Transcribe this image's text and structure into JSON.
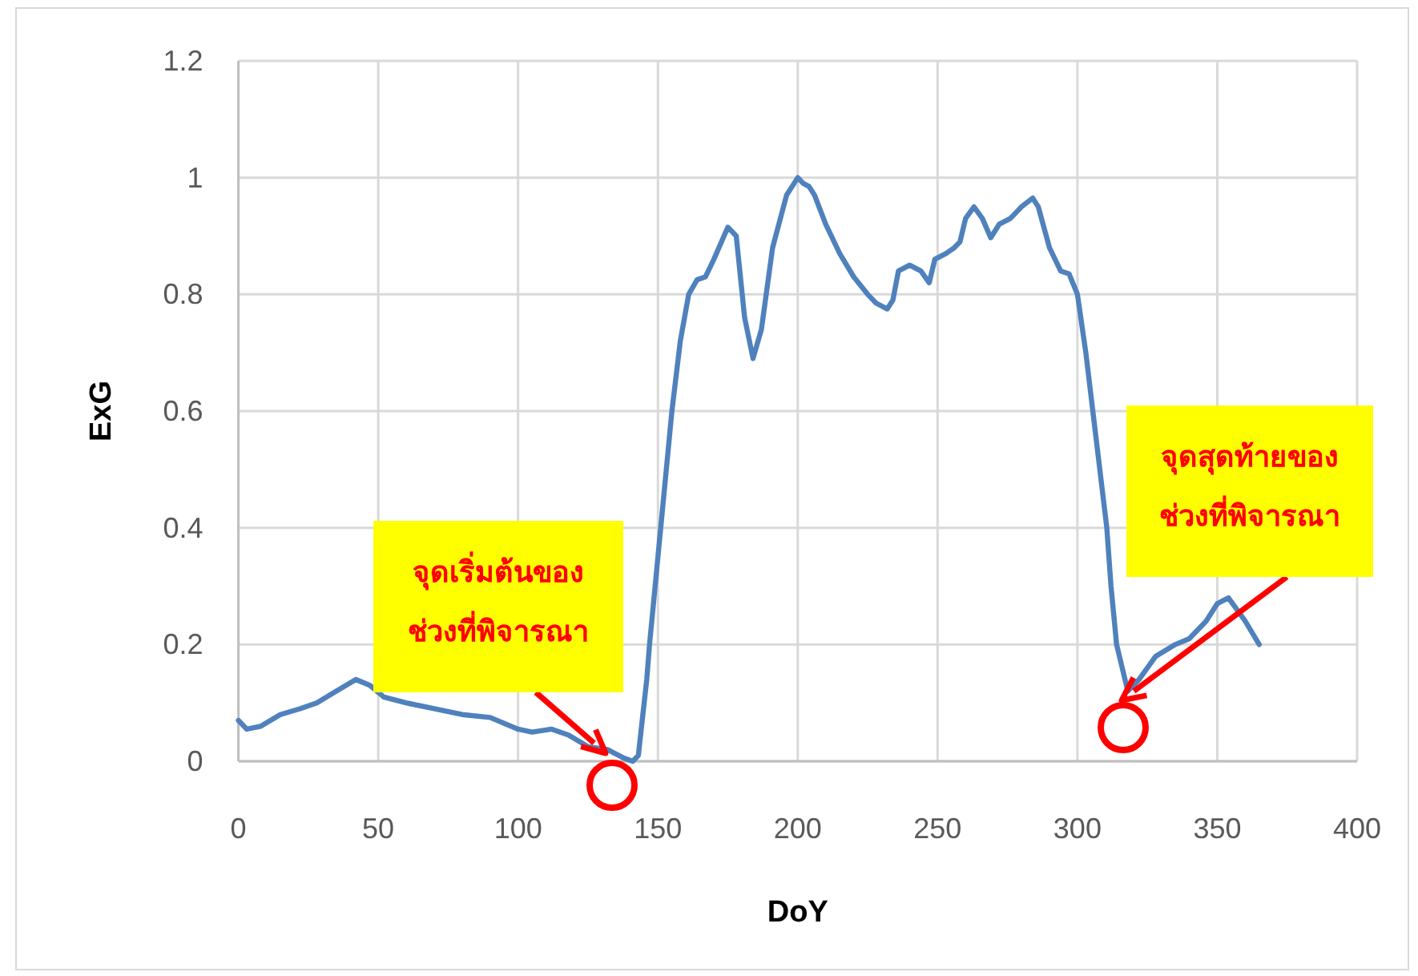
{
  "chart_data": {
    "type": "line",
    "xlabel": "DoY",
    "ylabel": "ExG",
    "xlim": [
      0,
      400
    ],
    "ylim": [
      0,
      1.2
    ],
    "xticks": [
      0,
      50,
      100,
      150,
      200,
      250,
      300,
      350,
      400
    ],
    "yticks": [
      0,
      0.2,
      0.4,
      0.6,
      0.8,
      1,
      1.2
    ],
    "grid": true,
    "marker": "none",
    "line_style": "solid",
    "series": [
      {
        "color": "#4f81bd",
        "x": [
          0,
          3,
          8,
          15,
          22,
          28,
          35,
          42,
          47,
          52,
          60,
          70,
          80,
          90,
          100,
          105,
          112,
          118,
          125,
          132,
          138,
          141,
          143,
          146,
          147,
          149,
          151,
          155,
          158,
          161,
          164,
          167,
          170,
          175,
          178,
          181,
          184,
          187,
          191,
          196,
          198,
          200,
          202,
          204,
          206,
          210,
          215,
          220,
          225,
          228,
          232,
          234,
          236,
          240,
          244,
          247,
          249,
          253,
          256,
          258,
          260,
          263,
          266,
          269,
          272,
          276,
          280,
          284,
          286,
          290,
          294,
          297,
          300,
          303,
          305.5,
          308,
          310.5,
          312,
          314,
          318,
          322,
          328,
          335,
          340,
          346,
          350,
          354,
          360,
          365
        ],
        "values": [
          0.07,
          0.055,
          0.06,
          0.08,
          0.09,
          0.1,
          0.12,
          0.14,
          0.13,
          0.11,
          0.1,
          0.09,
          0.08,
          0.075,
          0.055,
          0.05,
          0.055,
          0.045,
          0.025,
          0.02,
          0.005,
          0,
          0.01,
          0.14,
          0.2,
          0.3,
          0.4,
          0.6,
          0.72,
          0.8,
          0.825,
          0.83,
          0.86,
          0.915,
          0.9,
          0.76,
          0.69,
          0.74,
          0.88,
          0.97,
          0.985,
          1,
          0.99,
          0.985,
          0.97,
          0.92,
          0.87,
          0.83,
          0.8,
          0.785,
          0.775,
          0.79,
          0.84,
          0.85,
          0.84,
          0.82,
          0.86,
          0.87,
          0.88,
          0.89,
          0.93,
          0.95,
          0.93,
          0.897,
          0.92,
          0.93,
          0.95,
          0.965,
          0.95,
          0.88,
          0.84,
          0.835,
          0.8,
          0.7,
          0.6,
          0.5,
          0.4,
          0.3,
          0.2,
          0.12,
          0.14,
          0.18,
          0.2,
          0.21,
          0.24,
          0.27,
          0.28,
          0.24,
          0.2
        ]
      }
    ],
    "annotations": [
      "จุดเริ่มต้นของ\nช่วงที่พิจารณา",
      "จุดสุดท้ายของ\nช่วงที่พิจารณา"
    ]
  }
}
